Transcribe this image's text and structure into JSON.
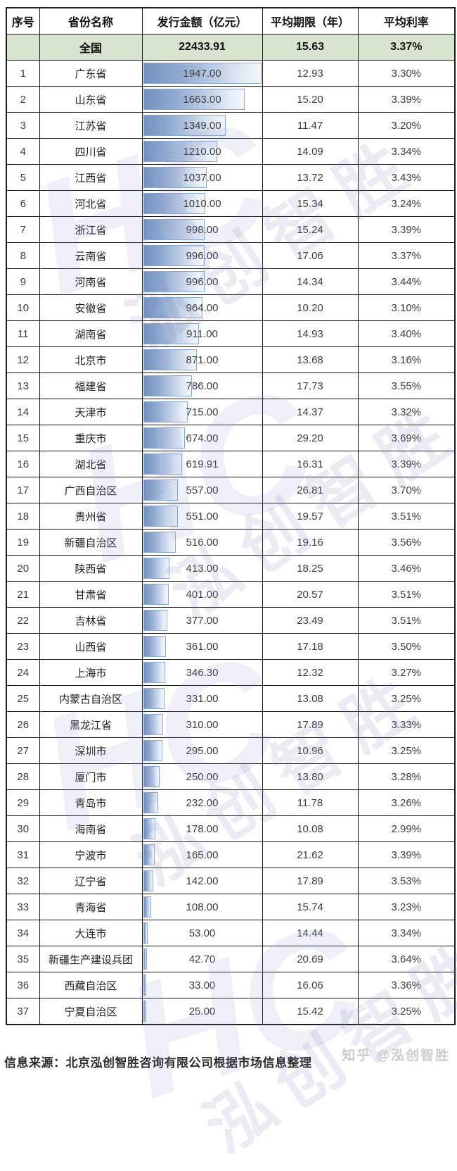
{
  "chart_data": {
    "type": "table",
    "columns": [
      "序号",
      "省份名称",
      "发行金额（亿元）",
      "平均期限（年）",
      "平均利率"
    ],
    "summary": {
      "seq": "",
      "name": "全国",
      "amount": "22433.91",
      "term": "15.63",
      "rate": "3.37%"
    },
    "bar_max_value": 1947.0,
    "rows": [
      {
        "seq": "1",
        "name": "广东省",
        "amount": "1947.00",
        "term": "12.93",
        "rate": "3.30%"
      },
      {
        "seq": "2",
        "name": "山东省",
        "amount": "1663.00",
        "term": "15.20",
        "rate": "3.39%"
      },
      {
        "seq": "3",
        "name": "江苏省",
        "amount": "1349.00",
        "term": "11.47",
        "rate": "3.20%"
      },
      {
        "seq": "4",
        "name": "四川省",
        "amount": "1210.00",
        "term": "14.09",
        "rate": "3.34%"
      },
      {
        "seq": "5",
        "name": "江西省",
        "amount": "1037.00",
        "term": "13.72",
        "rate": "3.43%"
      },
      {
        "seq": "6",
        "name": "河北省",
        "amount": "1010.00",
        "term": "15.34",
        "rate": "3.24%"
      },
      {
        "seq": "7",
        "name": "浙江省",
        "amount": "998.00",
        "term": "15.24",
        "rate": "3.39%"
      },
      {
        "seq": "8",
        "name": "云南省",
        "amount": "996.00",
        "term": "17.06",
        "rate": "3.37%"
      },
      {
        "seq": "9",
        "name": "河南省",
        "amount": "996.00",
        "term": "14.34",
        "rate": "3.44%"
      },
      {
        "seq": "10",
        "name": "安徽省",
        "amount": "964.00",
        "term": "10.20",
        "rate": "3.10%"
      },
      {
        "seq": "11",
        "name": "湖南省",
        "amount": "911.00",
        "term": "14.93",
        "rate": "3.40%"
      },
      {
        "seq": "12",
        "name": "北京市",
        "amount": "871.00",
        "term": "13.68",
        "rate": "3.16%"
      },
      {
        "seq": "13",
        "name": "福建省",
        "amount": "786.00",
        "term": "17.73",
        "rate": "3.55%"
      },
      {
        "seq": "14",
        "name": "天津市",
        "amount": "715.00",
        "term": "14.37",
        "rate": "3.32%"
      },
      {
        "seq": "15",
        "name": "重庆市",
        "amount": "674.00",
        "term": "29.20",
        "rate": "3.69%"
      },
      {
        "seq": "16",
        "name": "湖北省",
        "amount": "619.91",
        "term": "16.31",
        "rate": "3.39%"
      },
      {
        "seq": "17",
        "name": "广西自治区",
        "amount": "557.00",
        "term": "26.81",
        "rate": "3.70%"
      },
      {
        "seq": "18",
        "name": "贵州省",
        "amount": "551.00",
        "term": "19.57",
        "rate": "3.51%"
      },
      {
        "seq": "19",
        "name": "新疆自治区",
        "amount": "516.00",
        "term": "19.16",
        "rate": "3.56%"
      },
      {
        "seq": "20",
        "name": "陕西省",
        "amount": "413.00",
        "term": "18.25",
        "rate": "3.46%"
      },
      {
        "seq": "21",
        "name": "甘肃省",
        "amount": "401.00",
        "term": "20.57",
        "rate": "3.51%"
      },
      {
        "seq": "22",
        "name": "吉林省",
        "amount": "377.00",
        "term": "23.49",
        "rate": "3.51%"
      },
      {
        "seq": "23",
        "name": "山西省",
        "amount": "361.00",
        "term": "17.18",
        "rate": "3.50%"
      },
      {
        "seq": "24",
        "name": "上海市",
        "amount": "346.30",
        "term": "12.32",
        "rate": "3.27%"
      },
      {
        "seq": "25",
        "name": "内蒙古自治区",
        "amount": "331.00",
        "term": "13.08",
        "rate": "3.25%"
      },
      {
        "seq": "26",
        "name": "黑龙江省",
        "amount": "310.00",
        "term": "17.89",
        "rate": "3.33%"
      },
      {
        "seq": "27",
        "name": "深圳市",
        "amount": "295.00",
        "term": "10.96",
        "rate": "3.25%"
      },
      {
        "seq": "28",
        "name": "厦门市",
        "amount": "250.00",
        "term": "13.80",
        "rate": "3.28%"
      },
      {
        "seq": "29",
        "name": "青岛市",
        "amount": "232.00",
        "term": "11.78",
        "rate": "3.26%"
      },
      {
        "seq": "30",
        "name": "海南省",
        "amount": "178.00",
        "term": "10.08",
        "rate": "2.99%"
      },
      {
        "seq": "31",
        "name": "宁波市",
        "amount": "165.00",
        "term": "21.62",
        "rate": "3.39%"
      },
      {
        "seq": "32",
        "name": "辽宁省",
        "amount": "142.00",
        "term": "17.89",
        "rate": "3.53%"
      },
      {
        "seq": "33",
        "name": "青海省",
        "amount": "108.00",
        "term": "15.74",
        "rate": "3.23%"
      },
      {
        "seq": "34",
        "name": "大连市",
        "amount": "53.00",
        "term": "14.44",
        "rate": "3.34%"
      },
      {
        "seq": "35",
        "name": "新疆生产建设兵团",
        "amount": "42.70",
        "term": "20.69",
        "rate": "3.64%"
      },
      {
        "seq": "36",
        "name": "西藏自治区",
        "amount": "33.00",
        "term": "16.06",
        "rate": "3.36%"
      },
      {
        "seq": "37",
        "name": "宁夏自治区",
        "amount": "25.00",
        "term": "15.42",
        "rate": "3.25%"
      }
    ]
  },
  "footer": {
    "source": "信息来源：北京泓创智胜咨询有限公司根据市场信息整理",
    "credit": "知乎 @泓创智胜"
  },
  "watermark": {
    "text": "泓创智胜",
    "logo": "HC"
  },
  "colors": {
    "summary_row_bg": "#d8e4cf",
    "bar_start": "#7392c1",
    "bar_end": "#f2f6fb",
    "bar_border": "#8ca9d2",
    "grid_border": "#1a1a1a",
    "watermark": "rgba(130,130,185,0.16)"
  }
}
